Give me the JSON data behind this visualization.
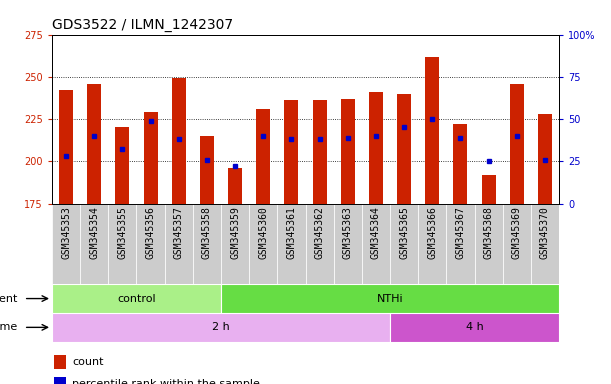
{
  "title": "GDS3522 / ILMN_1242307",
  "samples": [
    "GSM345353",
    "GSM345354",
    "GSM345355",
    "GSM345356",
    "GSM345357",
    "GSM345358",
    "GSM345359",
    "GSM345360",
    "GSM345361",
    "GSM345362",
    "GSM345363",
    "GSM345364",
    "GSM345365",
    "GSM345366",
    "GSM345367",
    "GSM345368",
    "GSM345369",
    "GSM345370"
  ],
  "bar_tops": [
    242,
    246,
    220,
    229,
    249,
    215,
    196,
    231,
    236,
    236,
    237,
    241,
    240,
    262,
    222,
    192,
    246,
    228
  ],
  "bar_base": 175,
  "blue_y": [
    203,
    215,
    207,
    224,
    213,
    201,
    197,
    215,
    213,
    213,
    214,
    215,
    220,
    225,
    214,
    200,
    215,
    201
  ],
  "ylim_left": [
    175,
    275
  ],
  "ylim_right": [
    0,
    100
  ],
  "yticks_left": [
    175,
    200,
    225,
    250,
    275
  ],
  "yticks_right": [
    0,
    25,
    50,
    75,
    100
  ],
  "bar_color": "#cc2200",
  "blue_color": "#0000cc",
  "plot_bg": "#ffffff",
  "agent_groups": [
    {
      "label": "control",
      "start": 0,
      "end": 6,
      "color": "#aaf088"
    },
    {
      "label": "NTHi",
      "start": 6,
      "end": 18,
      "color": "#66dd44"
    }
  ],
  "time_groups": [
    {
      "label": "2 h",
      "start": 0,
      "end": 12,
      "color": "#e8b0f0"
    },
    {
      "label": "4 h",
      "start": 12,
      "end": 18,
      "color": "#cc55cc"
    }
  ],
  "legend_items": [
    {
      "label": "count",
      "color": "#cc2200"
    },
    {
      "label": "percentile rank within the sample",
      "color": "#0000cc"
    }
  ],
  "xtick_bg": "#cccccc",
  "title_fontsize": 10,
  "tick_fontsize": 7,
  "label_fontsize": 8,
  "bar_width": 0.5
}
